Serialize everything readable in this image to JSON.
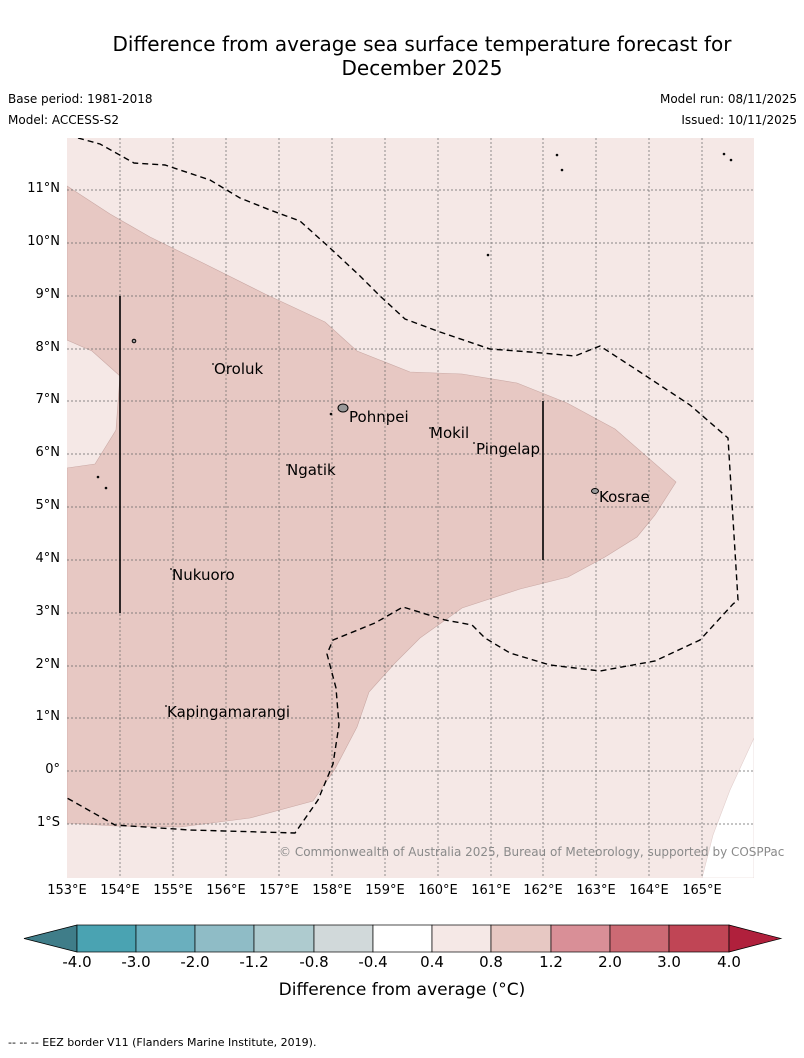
{
  "title": {
    "line1": "Difference from average sea surface temperature forecast for",
    "line2": "December 2025"
  },
  "meta": {
    "base_period": "Base period: 1981-2018",
    "model": "Model: ACCESS-S2",
    "model_run": "Model run: 08/11/2025",
    "issued": "Issued: 10/11/2025"
  },
  "map": {
    "lat_labels": [
      "11°N",
      "10°N",
      "9°N",
      "8°N",
      "7°N",
      "6°N",
      "5°N",
      "4°N",
      "3°N",
      "2°N",
      "1°N",
      "0°",
      "1°S"
    ],
    "lon_labels": [
      "153°E",
      "154°E",
      "155°E",
      "156°E",
      "157°E",
      "158°E",
      "159°E",
      "160°E",
      "161°E",
      "162°E",
      "163°E",
      "164°E",
      "165°E"
    ],
    "places": {
      "oroluk": "Oroluk",
      "pohnpei": "Pohnpei",
      "mokil": "Mokil",
      "pingelap": "Pingelap",
      "ngatik": "Ngatik",
      "kosrae": "Kosrae",
      "nukuoro": "Nukuoro",
      "kapingamarangi": "Kapingamarangi"
    },
    "copyright": "© Commonwealth of Australia 2025, Bureau of Meteorology, supported by COSPPac"
  },
  "colorbar": {
    "ticks": [
      "-4.0",
      "-3.0",
      "-2.0",
      "-1.2",
      "-0.8",
      "-0.4",
      "0.4",
      "0.8",
      "1.2",
      "2.0",
      "3.0",
      "4.0"
    ],
    "colors": [
      "#3f7d89",
      "#4aa3b2",
      "#6aafbe",
      "#8fbcc6",
      "#aecbcf",
      "#d1d9da",
      "#ffffff",
      "#f5e8e6",
      "#e7c8c3",
      "#d98f97",
      "#cc6a74",
      "#c04555",
      "#b0203c"
    ],
    "label": "Difference from average (°C)"
  },
  "footnote": "--  --  -- EEZ border V11 (Flanders Marine Institute, 2019)."
}
